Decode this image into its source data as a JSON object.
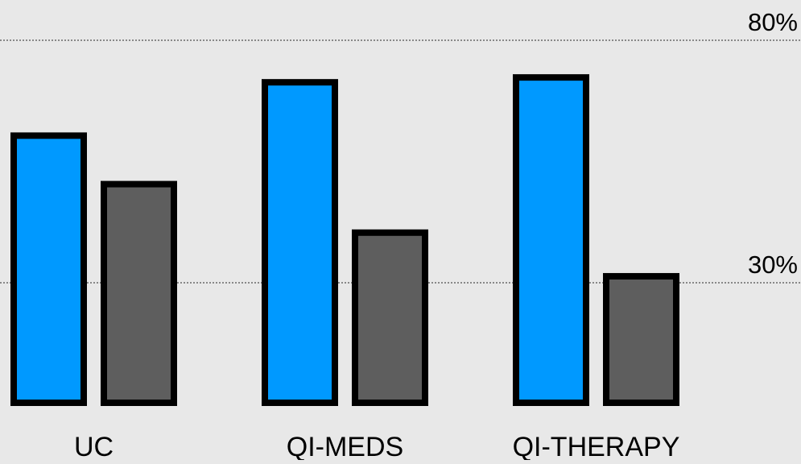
{
  "chart_data": {
    "type": "bar",
    "categories": [
      "UC",
      "QI-MEDS",
      "QI-THERAPY"
    ],
    "series": [
      {
        "values": [
          61,
          72,
          73
        ]
      },
      {
        "values": [
          51,
          41,
          32
        ]
      }
    ],
    "y_tick_labels": [
      {
        "value": 80,
        "label": "80%"
      },
      {
        "value": 30,
        "label": "30%"
      }
    ],
    "ylim": [
      -2,
      80
    ],
    "grid": "dotted horizontal lines at labeled ticks",
    "colors": {
      "background": "#e8e8e8",
      "series": [
        "#0099ff",
        "#5e5e5e"
      ],
      "outline": "#000000",
      "gridline": "#888888",
      "text": "#000000"
    }
  }
}
